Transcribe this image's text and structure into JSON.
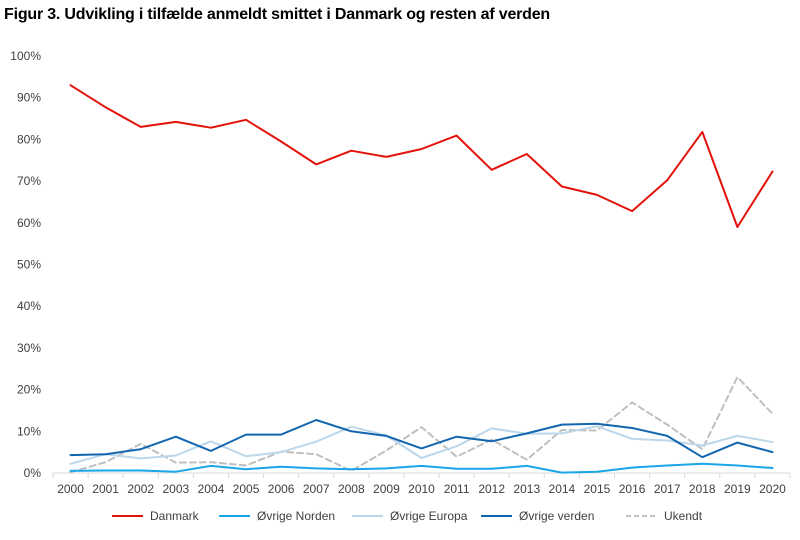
{
  "title": "Figur 3. Udvikling i tilfælde anmeldt smittet i Danmark og resten af verden",
  "chart_data": {
    "type": "line",
    "title": "Figur 3. Udvikling i tilfælde anmeldt smittet i Danmark og resten af verden",
    "xlabel": "",
    "ylabel": "",
    "ylim": [
      0,
      100
    ],
    "y_ticks": [
      "0%",
      "10%",
      "20%",
      "30%",
      "40%",
      "50%",
      "60%",
      "70%",
      "80%",
      "90%",
      "100%"
    ],
    "gridlines": false,
    "legend_position": "bottom",
    "categories": [
      "2000",
      "2001",
      "2002",
      "2003",
      "2004",
      "2005",
      "2006",
      "2007",
      "2008",
      "2009",
      "2010",
      "2011",
      "2012",
      "2013",
      "2014",
      "2015",
      "2016",
      "2017",
      "2018",
      "2019",
      "2020"
    ],
    "series": [
      {
        "name": "Danmark",
        "color": "#e3120b",
        "dash": "solid",
        "values": [
          93,
          87.7,
          83,
          84.2,
          82.8,
          84.7,
          79.5,
          74,
          77.3,
          75.8,
          77.7,
          80.9,
          72.7,
          76.5,
          68.7,
          66.7,
          62.8,
          70.2,
          81.8,
          59,
          72.3
        ]
      },
      {
        "name": "Øvrige Norden",
        "color": "#1aa6e8",
        "dash": "solid",
        "values": [
          0.5,
          0.6,
          0.6,
          0.3,
          1.7,
          0.9,
          1.5,
          1.1,
          0.9,
          1.1,
          1.7,
          1.0,
          1.0,
          1.7,
          0.1,
          0.3,
          1.3,
          1.8,
          2.2,
          1.8,
          1.2
        ]
      },
      {
        "name": "Øvrige Europa",
        "color": "#bcd7ea",
        "dash": "solid",
        "values": [
          2.2,
          4.5,
          3.5,
          4.2,
          7.6,
          4.0,
          5.0,
          7.5,
          11.1,
          9.0,
          3.6,
          6.4,
          10.7,
          9.4,
          9.5,
          11.2,
          8.2,
          7.8,
          6.6,
          8.9,
          7.4
        ]
      },
      {
        "name": "Øvrige verden",
        "color": "#1266b0",
        "dash": "solid",
        "values": [
          4.3,
          4.5,
          5.7,
          8.7,
          5.3,
          9.2,
          9.2,
          12.7,
          10.0,
          8.9,
          5.9,
          8.7,
          7.6,
          9.5,
          11.6,
          11.8,
          10.8,
          8.9,
          3.8,
          7.3,
          5.0
        ]
      },
      {
        "name": "Ukendt",
        "color": "#bfbfbf",
        "dash": "dashed",
        "values": [
          0.2,
          2.6,
          7.0,
          2.5,
          2.6,
          1.8,
          5.1,
          4.5,
          0.5,
          5.4,
          11.0,
          3.9,
          8.0,
          3.2,
          10.3,
          10.2,
          16.9,
          11.6,
          5.7,
          23.0,
          14.2
        ]
      }
    ]
  }
}
